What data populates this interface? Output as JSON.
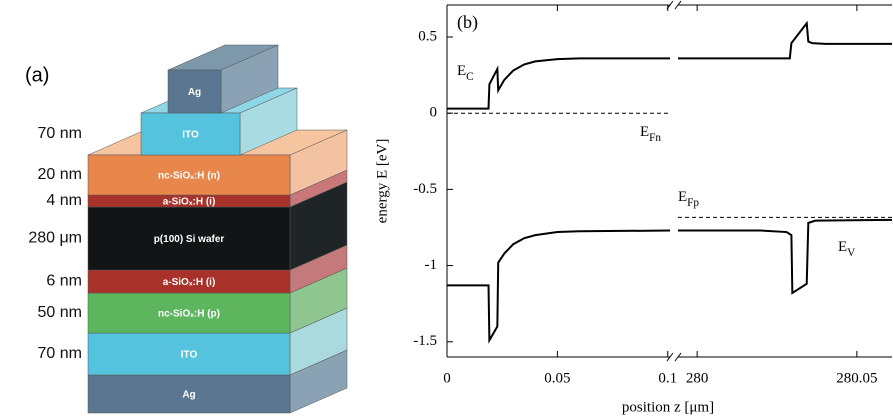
{
  "figure_a": {
    "label": "(a)",
    "layers": [
      {
        "name": "Ag"
      },
      {
        "name": "ITO",
        "thickness": "70 nm"
      },
      {
        "name": "nc-SiOₓ:H (n)",
        "thickness": "20 nm"
      },
      {
        "name": "a-SiOₓ:H (i)",
        "thickness": "4 nm"
      },
      {
        "name": "p(100) Si wafer",
        "thickness": "280 μm"
      },
      {
        "name": "a-SiOₓ:H (i)",
        "thickness": "6 nm"
      },
      {
        "name": "nc-SiOₓ:H (p)",
        "thickness": "50 nm"
      },
      {
        "name": "ITO",
        "thickness": "70 nm"
      },
      {
        "name": "Ag"
      }
    ]
  },
  "chart_data": [
    {
      "type": "line",
      "panel_label": "(b)",
      "y_label": "energy E [eV]",
      "x_label": "position z [μm]",
      "xlim": [
        0,
        0.101
      ],
      "xticks": [
        0,
        0.05,
        0.1
      ],
      "ylim": [
        -1.6,
        0.71
      ],
      "yticks": [
        0.5,
        0,
        -0.5,
        -1,
        -1.5
      ],
      "annotations": [
        {
          "text": "E",
          "sub": "C"
        },
        {
          "text": "E",
          "sub": "Fn"
        }
      ],
      "series": [
        {
          "color": "#000000",
          "dash": false,
          "x": [
            0,
            0.0188,
            0.0192,
            0.0228,
            0.0232,
            0.026,
            0.03,
            0.035,
            0.04,
            0.05,
            0.06,
            0.101
          ],
          "values": [
            0.03,
            0.03,
            0.19,
            0.29,
            0.15,
            0.22,
            0.28,
            0.32,
            0.34,
            0.355,
            0.36,
            0.36
          ]
        },
        {
          "color": "#000000",
          "dash": false,
          "x": [
            0,
            0.0188,
            0.0192,
            0.0228,
            0.0232,
            0.026,
            0.03,
            0.035,
            0.04,
            0.05,
            0.06,
            0.101
          ],
          "values": [
            -1.13,
            -1.13,
            -1.49,
            -1.4,
            -0.98,
            -0.92,
            -0.86,
            -0.82,
            -0.8,
            -0.78,
            -0.775,
            -0.77
          ]
        },
        {
          "color": "#000000",
          "dash": true,
          "x": [
            0,
            0.101
          ],
          "values": [
            0,
            0
          ]
        }
      ]
    },
    {
      "type": "line",
      "xlim": [
        279.994,
        280.061
      ],
      "xticks": [
        280,
        280.05
      ],
      "ylim": [
        -1.6,
        0.71
      ],
      "annotations": [
        {
          "text": "E",
          "sub": "Fp"
        },
        {
          "text": "E",
          "sub": "V"
        }
      ],
      "series": [
        {
          "color": "#000000",
          "dash": false,
          "x": [
            279.994,
            280.029,
            280.0295,
            280.0343,
            280.0348,
            280.036,
            280.04,
            280.061
          ],
          "values": [
            0.36,
            0.36,
            0.46,
            0.59,
            0.47,
            0.46,
            0.455,
            0.455
          ]
        },
        {
          "color": "#000000",
          "dash": false,
          "x": [
            279.994,
            280.02,
            280.028,
            280.0295,
            280.0298,
            280.0343,
            280.0348,
            280.037,
            280.061
          ],
          "values": [
            -0.77,
            -0.77,
            -0.78,
            -0.8,
            -1.18,
            -1.12,
            -0.72,
            -0.705,
            -0.7
          ]
        },
        {
          "color": "#000000",
          "dash": true,
          "x": [
            279.994,
            280.061
          ],
          "values": [
            -0.684,
            -0.684
          ]
        }
      ]
    }
  ]
}
